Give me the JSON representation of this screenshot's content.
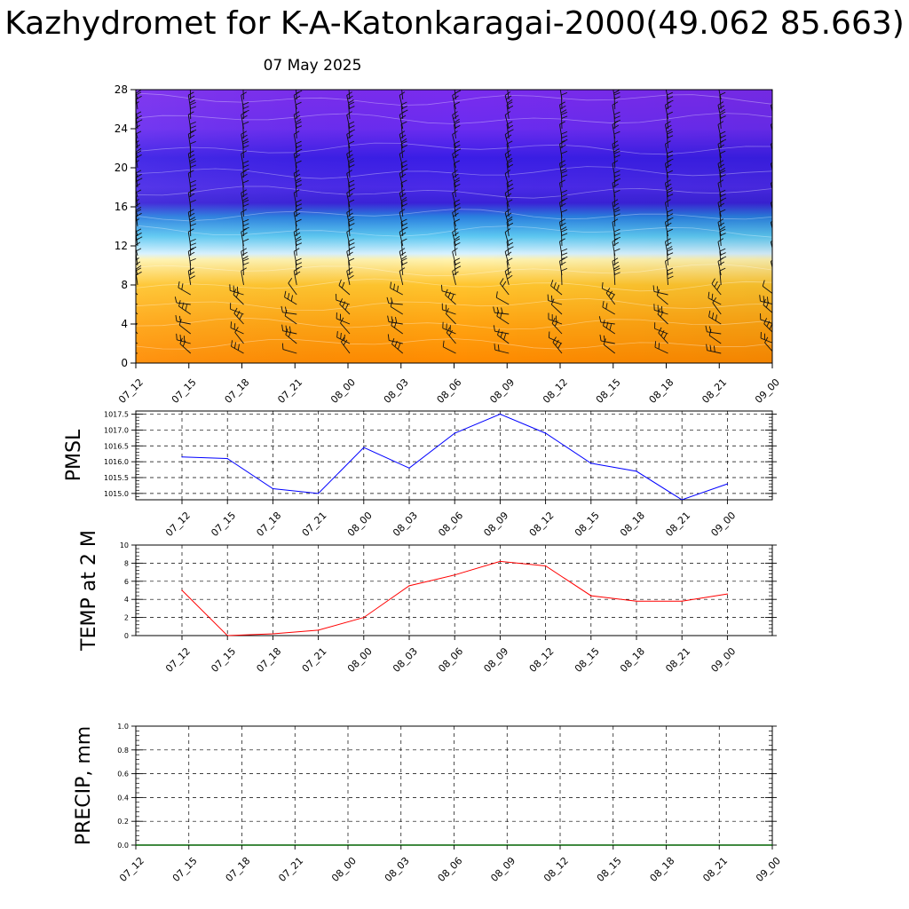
{
  "title": "Kazhydromet for K-A-Katonkaragai-2000(49.062 85.663)",
  "subtitle": "07 May 2025",
  "colors": {
    "axis": "#000000",
    "grid": "#000000",
    "pmsl_line": "#0000ff",
    "temp_line": "#ff0000",
    "precip_line": "#006400",
    "barb": "#111111"
  },
  "chart_data": [
    {
      "id": "wind-temperature-cross-section",
      "type": "heatmap",
      "ylabel": "",
      "ylim": [
        0,
        28
      ],
      "yticks": [
        0,
        4,
        8,
        12,
        16,
        20,
        24,
        28
      ],
      "x_ticks": [
        "07_12",
        "07_15",
        "07_18",
        "07_21",
        "08_00",
        "08_03",
        "08_06",
        "08_09",
        "08_12",
        "08_15",
        "08_18",
        "08_21",
        "09_00"
      ],
      "color_levels": [
        {
          "level": 0,
          "color": "#ff8a00"
        },
        {
          "level": 4,
          "color": "#ffa412"
        },
        {
          "level": 8,
          "color": "#ffc52e"
        },
        {
          "level": 10.6,
          "color": "#fff3b0"
        },
        {
          "level": 11.2,
          "color": "#d8f2ff"
        },
        {
          "level": 13,
          "color": "#5cc8f2"
        },
        {
          "level": 15,
          "color": "#2a7fe0"
        },
        {
          "level": 16.4,
          "color": "#3a22d8"
        },
        {
          "level": 18,
          "color": "#4a2ae8"
        },
        {
          "level": 21,
          "color": "#3a1ee6"
        },
        {
          "level": 24,
          "color": "#6a2cf0"
        },
        {
          "level": 28,
          "color": "#7a2cee"
        }
      ],
      "wind_barb_levels": [
        1,
        2,
        3,
        4,
        5,
        6,
        7,
        8,
        9,
        10,
        11,
        12,
        13,
        14,
        15,
        16,
        17,
        18,
        19,
        20,
        21,
        22,
        23,
        24,
        25,
        26,
        27
      ]
    },
    {
      "id": "pmsl",
      "type": "line",
      "ylabel": "PMSL",
      "ylim": [
        1014.8,
        1017.6
      ],
      "yticks": [
        1015.0,
        1015.5,
        1016.0,
        1016.5,
        1017.0,
        1017.5
      ],
      "ytick_labels": [
        "1015.0",
        "1015.5",
        "1016.0",
        "1016.5",
        "1017.0",
        "1017.5"
      ],
      "x": [
        "07_12",
        "07_15",
        "07_18",
        "07_21",
        "08_00",
        "08_03",
        "08_06",
        "08_09",
        "08_12",
        "08_15",
        "08_18",
        "08_21",
        "09_00"
      ],
      "series": [
        {
          "values": [
            1016.15,
            1016.1,
            1015.15,
            1015.0,
            1016.45,
            1015.8,
            1016.9,
            1017.5,
            1016.9,
            1015.95,
            1015.7,
            1014.8,
            1015.3
          ]
        }
      ]
    },
    {
      "id": "temp-2m",
      "type": "line",
      "ylabel": "TEMP at 2 M",
      "ylim": [
        0,
        10
      ],
      "yticks": [
        0,
        2,
        4,
        6,
        8,
        10
      ],
      "ytick_labels": [
        "0",
        "2",
        "4",
        "6",
        "8",
        "10"
      ],
      "x": [
        "07_12",
        "07_15",
        "07_18",
        "07_21",
        "08_00",
        "08_03",
        "08_06",
        "08_09",
        "08_12",
        "08_15",
        "08_18",
        "08_21",
        "09_00"
      ],
      "series": [
        {
          "values": [
            5.0,
            0.0,
            0.2,
            0.6,
            2.0,
            5.5,
            6.7,
            8.2,
            7.7,
            4.4,
            3.8,
            3.8,
            4.6
          ]
        }
      ]
    },
    {
      "id": "precip",
      "type": "line",
      "ylabel": "PRECIP, mm",
      "ylim": [
        0,
        1
      ],
      "yticks": [
        0,
        0.2,
        0.4,
        0.6,
        0.8,
        1.0
      ],
      "ytick_labels": [
        "0.0",
        "0.2",
        "0.4",
        "0.6",
        "0.8",
        "1.0"
      ],
      "x": [
        "07_12",
        "07_15",
        "07_18",
        "07_21",
        "08_00",
        "08_03",
        "08_06",
        "08_09",
        "08_12",
        "08_15",
        "08_18",
        "08_21",
        "09_00"
      ],
      "series": [
        {
          "values": [
            0,
            0,
            0,
            0,
            0,
            0,
            0,
            0,
            0,
            0,
            0,
            0,
            0
          ]
        }
      ]
    }
  ]
}
